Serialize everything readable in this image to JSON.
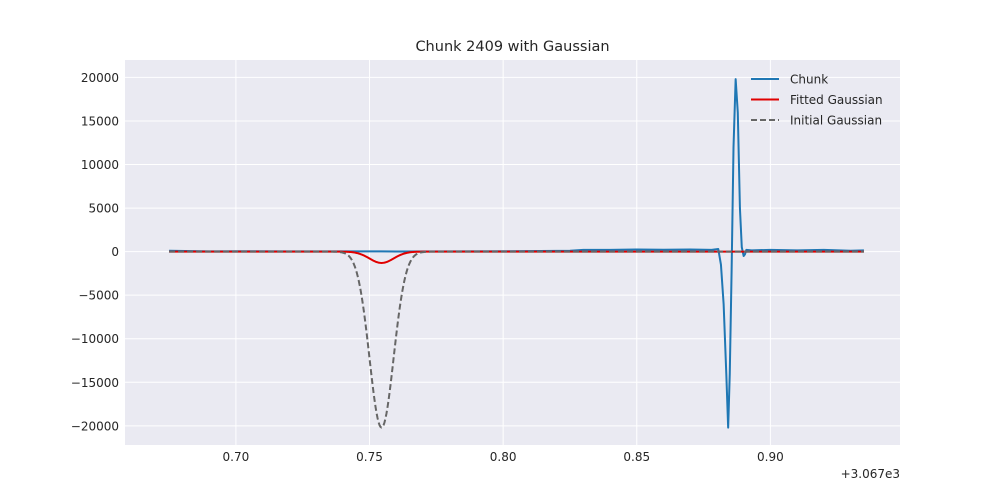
{
  "chart_data": {
    "type": "line",
    "title": "Chunk 2409 with Gaussian",
    "xlabel": "",
    "ylabel": "",
    "x_offset_label": "+3.067e3",
    "xlim": [
      0.6585,
      0.9485
    ],
    "ylim": [
      -22200,
      22000
    ],
    "xticks": [
      0.7,
      0.75,
      0.8,
      0.85,
      0.9
    ],
    "xtick_labels": [
      "0.70",
      "0.75",
      "0.80",
      "0.85",
      "0.90"
    ],
    "yticks": [
      20000,
      15000,
      10000,
      5000,
      0,
      -5000,
      -10000,
      -15000,
      -20000
    ],
    "ytick_labels": [
      "20000",
      "15000",
      "10000",
      "5000",
      "0",
      "−5000",
      "−10000",
      "−15000",
      "−20000"
    ],
    "grid": true,
    "legend_position": "upper-right",
    "colors": {
      "plot_background": "#eaeaf2",
      "grid": "#ffffff",
      "chunk": "#1f77b4",
      "fitted": "#e00000",
      "initial": "#666666"
    },
    "series": [
      {
        "name": "Chunk",
        "style": "solid",
        "x": [
          0.675,
          0.69,
          0.7,
          0.72,
          0.74,
          0.76,
          0.78,
          0.8,
          0.82,
          0.825,
          0.83,
          0.84,
          0.85,
          0.86,
          0.87,
          0.878,
          0.8805,
          0.8815,
          0.8825,
          0.8835,
          0.8842,
          0.8848,
          0.8855,
          0.8862,
          0.887,
          0.8878,
          0.8886,
          0.8893,
          0.89,
          0.8905,
          0.891,
          0.893,
          0.9,
          0.91,
          0.92,
          0.93,
          0.935
        ],
        "y": [
          100,
          30,
          50,
          30,
          30,
          20,
          30,
          40,
          80,
          100,
          200,
          200,
          250,
          220,
          250,
          200,
          300,
          -1500,
          -6000,
          -14000,
          -20200,
          -14000,
          -2000,
          12000,
          19800,
          16000,
          5000,
          500,
          -500,
          -300,
          200,
          150,
          200,
          150,
          200,
          100,
          150
        ]
      },
      {
        "name": "Fitted Gaussian",
        "style": "solid",
        "gaussian": {
          "amplitude": -1300,
          "center": 0.7545,
          "sigma": 0.0045
        },
        "x_range": [
          0.675,
          0.935
        ]
      },
      {
        "name": "Initial Gaussian",
        "style": "dashed",
        "gaussian": {
          "amplitude": -20200,
          "center": 0.7545,
          "sigma": 0.0045
        },
        "x_range": [
          0.675,
          0.935
        ]
      }
    ]
  }
}
